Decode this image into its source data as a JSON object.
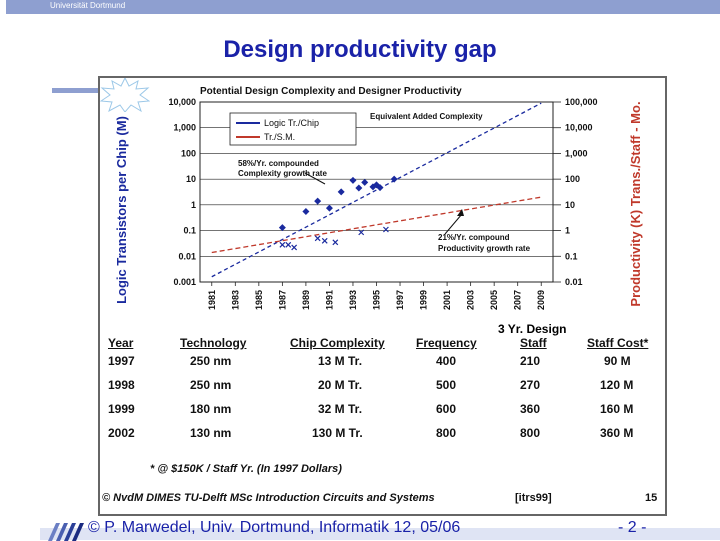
{
  "header": {
    "university": "Universität Dortmund"
  },
  "slide": {
    "title": "Design productivity gap"
  },
  "chart_data": {
    "type": "line",
    "title": "Potential Design Complexity and Designer Productivity",
    "ylabel_left": "Logic Transistors per Chip (M)",
    "ylabel_right": "Productivity (K) Trans./Staff - Mo.",
    "y_scale": "log",
    "x_ticks": [
      "1981",
      "1983",
      "1985",
      "1987",
      "1989",
      "1991",
      "1993",
      "1995",
      "1997",
      "1999",
      "2001",
      "2003",
      "2005",
      "2007",
      "2009"
    ],
    "left_ticks": [
      "10,000",
      "1,000",
      "100",
      "10",
      "1",
      "0.1",
      "0.01",
      "0.001"
    ],
    "right_ticks": [
      "100,000",
      "10,000",
      "1,000",
      "100",
      "10",
      "1",
      "0.1",
      "0.01"
    ],
    "legend": [
      "Logic Tr./Chip",
      "Tr./S.M."
    ],
    "annotations": {
      "equiv": "Equivalent Added Complexity",
      "comp1": "58%/Yr. compounded",
      "comp2": "Complexity growth rate",
      "prod1": "21%/Yr. compound",
      "prod2": "Productivity growth rate"
    },
    "series": [
      {
        "name": "Logic Tr./Chip",
        "color": "#1a2a9e",
        "x": [
          1981,
          2009
        ],
        "y": [
          0.0016,
          9000
        ],
        "points_x": [
          1987,
          1989,
          1990,
          1991,
          1992,
          1993,
          1993.5,
          1994,
          1994.7,
          1995,
          1995.3,
          1996.5
        ],
        "points_y": [
          0.13,
          0.55,
          1.4,
          0.75,
          3.2,
          9,
          4.5,
          7.5,
          5,
          6,
          4.7,
          10
        ]
      },
      {
        "name": "Tr./S.M.",
        "color": "#c0392b",
        "x": [
          1981,
          2009
        ],
        "y": [
          0.014,
          2
        ],
        "points_x": [
          1987,
          1987.5,
          1988,
          1990,
          1990.6,
          1991.5,
          1993.7,
          1995.8
        ],
        "points_y": [
          0.028,
          0.028,
          0.022,
          0.05,
          0.04,
          0.035,
          0.085,
          0.11
        ]
      }
    ]
  },
  "table": {
    "caption_top": "3 Yr. Design",
    "headers": [
      "Year",
      "Technology",
      "Chip Complexity",
      "Frequency",
      "Staff",
      "Staff Cost*"
    ],
    "rows": [
      [
        "1997",
        "250 nm",
        "13 M Tr.",
        "400",
        "210",
        "90 M"
      ],
      [
        "1998",
        "250 nm",
        "20 M Tr.",
        "500",
        "270",
        "120 M"
      ],
      [
        "1999",
        "180 nm",
        "32 M Tr.",
        "600",
        "360",
        "160 M"
      ],
      [
        "2002",
        "130 nm",
        "130 M Tr.",
        "800",
        "800",
        "360 M"
      ]
    ],
    "footnote": "* @ $150K / Staff Yr. (In 1997 Dollars)"
  },
  "figure_footer": {
    "credit": "© NvdM DIMES TU-Delft   MSc Introduction Circuits and Systems",
    "source": "[itrs99]",
    "number": "15"
  },
  "footer": {
    "copyright": "© P. Marwedel, Univ. Dortmund, Informatik 12, 05/06",
    "page": "- 2 -"
  },
  "colors": {
    "title": "#1a22a8",
    "accent_bar": "#8e9fd0",
    "right_axis": "#c0392b"
  }
}
